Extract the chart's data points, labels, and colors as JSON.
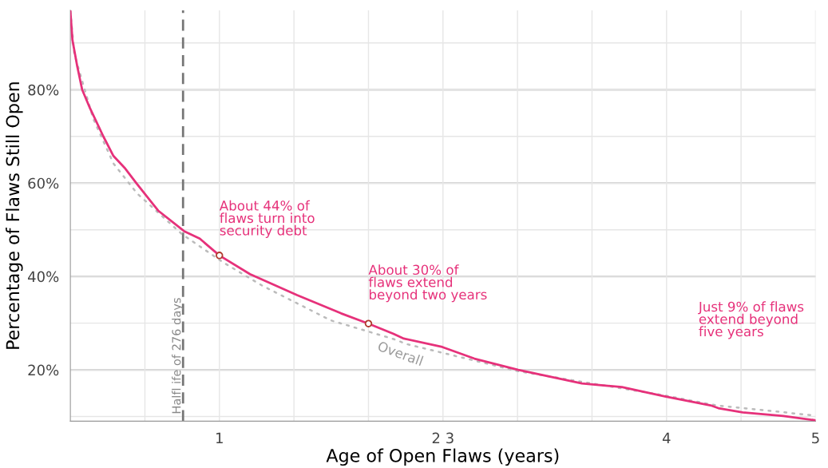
{
  "chart_data": {
    "type": "line",
    "xlabel": "Age of Open Flaws (years)",
    "ylabel": "Percentage of Flaws Still Open",
    "series": [
      {
        "color": "#e6317a",
        "line_style": "solid",
        "x": [
          0,
          0.014,
          0.046,
          0.079,
          0.132,
          0.221,
          0.289,
          0.363,
          0.447,
          0.589,
          0.763,
          0.868,
          1.0,
          1.205,
          1.521,
          1.816,
          2.0,
          2.168,
          2.237,
          2.495,
          2.711,
          3.005,
          3.432,
          3.7,
          3.989,
          4.295,
          4.347,
          4.511,
          4.784,
          5.0
        ],
        "values": [
          96.8,
          90.6,
          85.0,
          80.0,
          76.0,
          70.0,
          65.8,
          63.3,
          59.8,
          54.1,
          49.7,
          48.1,
          44.5,
          40.5,
          36.0,
          32.1,
          29.9,
          27.7,
          26.7,
          24.9,
          22.4,
          20.0,
          17.1,
          16.3,
          14.3,
          12.4,
          11.8,
          10.9,
          10.1,
          9.2
        ]
      },
      {
        "name": "Overall",
        "color": "#bbbbbb",
        "line_style": "dotted",
        "x": [
          0,
          0.026,
          0.153,
          0.289,
          0.447,
          0.747,
          1.026,
          1.289,
          1.747,
          2.168,
          2.258,
          3.005,
          3.989,
          4.332,
          5.0
        ],
        "values": [
          96.8,
          87.7,
          73.8,
          64.2,
          57.8,
          49.1,
          43.0,
          38.0,
          30.6,
          26.6,
          25.5,
          19.7,
          14.5,
          12.4,
          10.2
        ]
      }
    ],
    "xlim": [
      0,
      5
    ],
    "ylim": [
      9,
      97
    ],
    "xticks": [
      {
        "value": 0.5,
        "label": null
      },
      1,
      {
        "value": 1.5,
        "label": null
      },
      {
        "value": 2,
        "label": null
      },
      {
        "value": 2.5,
        "label": "2 3"
      },
      {
        "value": 3,
        "label": null
      },
      {
        "value": 3.5,
        "label": null
      },
      4,
      {
        "value": 4.5,
        "label": null
      },
      5
    ],
    "yticks": [
      {
        "value": 10,
        "label": null
      },
      {
        "value": 20,
        "label": "20%"
      },
      {
        "value": 30,
        "label": null
      },
      {
        "value": 40,
        "label": "40%"
      },
      {
        "value": 50,
        "label": null
      },
      {
        "value": 60,
        "label": "60%"
      },
      {
        "value": 70,
        "label": null
      },
      {
        "value": 80,
        "label": "80%"
      },
      {
        "value": 90,
        "label": null
      }
    ],
    "grid": true,
    "ref_lines": [
      {
        "axis": "x",
        "value": 0.756,
        "label": "Halfl ife of 276 days",
        "color": "#777777",
        "line_style": "dashed"
      }
    ],
    "annotations": [
      {
        "text": "About 44% of\nflaws turn into\nsecurity debt",
        "x": 1,
        "y": 44.5
      },
      {
        "text": "About 30% of\nflaws extend\nbeyond two years",
        "x": 2,
        "y": 29.9
      },
      "Just 9% of flaws\nextend beyond\nfive years"
    ]
  }
}
